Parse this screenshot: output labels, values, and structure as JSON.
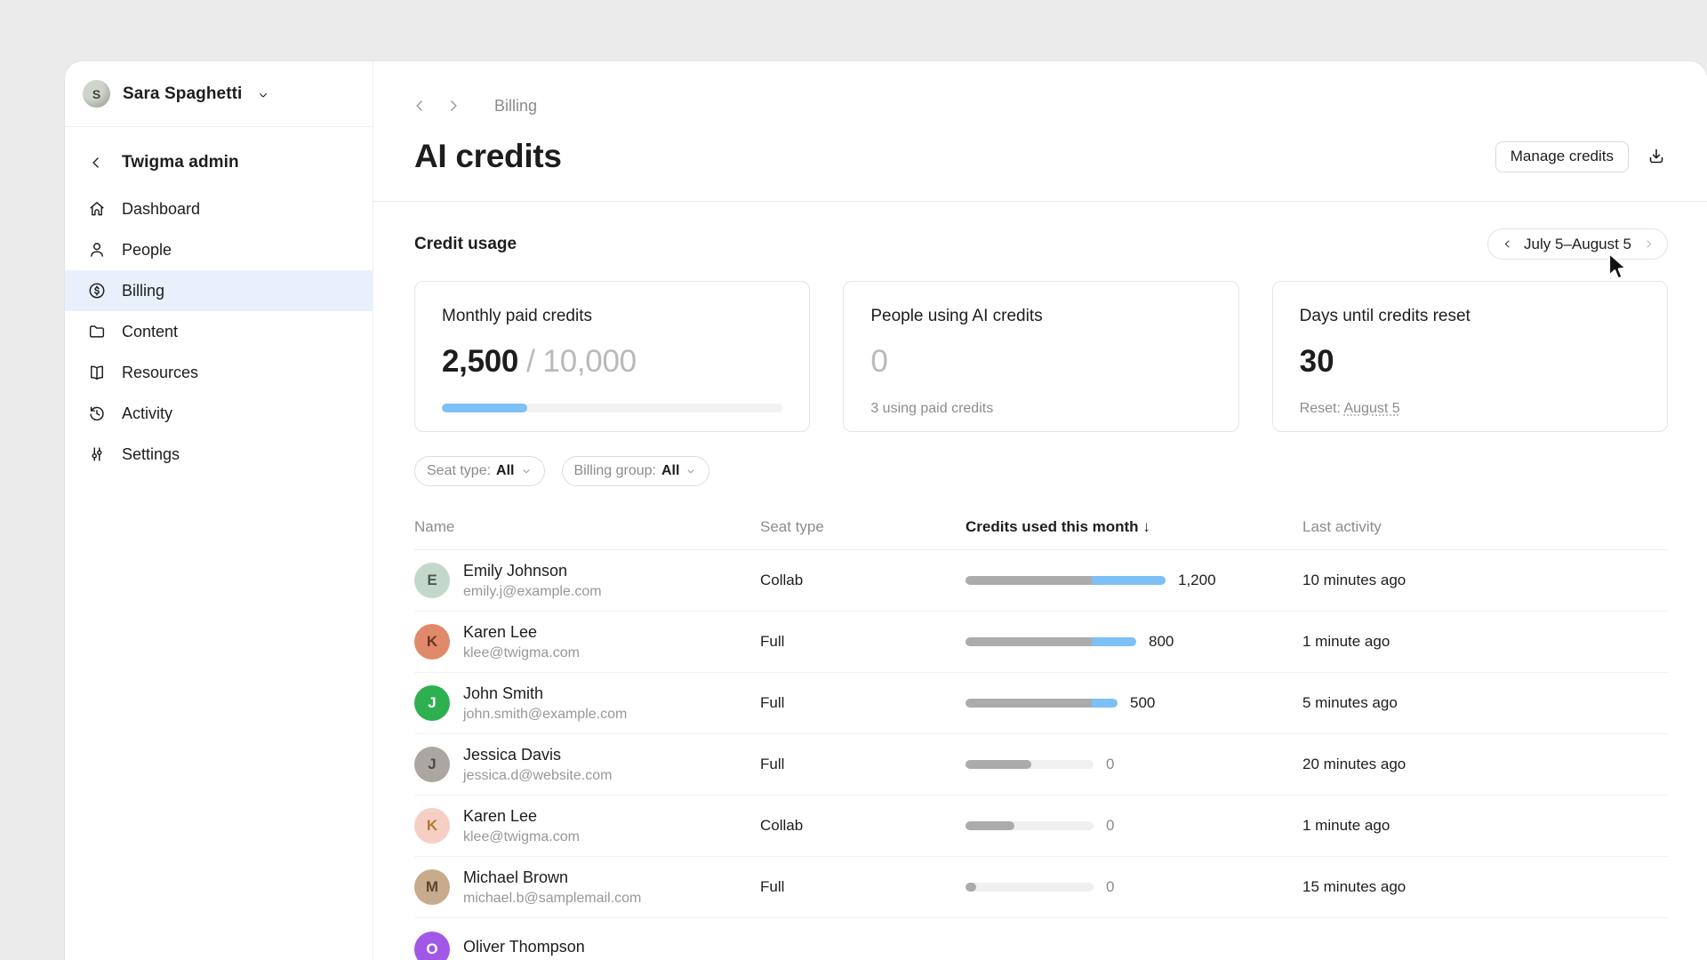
{
  "user_menu": {
    "name": "Sara Spaghetti",
    "avatar_initial": "S"
  },
  "sidebar": {
    "workspace_label": "Twigma admin",
    "items": [
      {
        "label": "Dashboard",
        "icon": "home-icon",
        "active": false
      },
      {
        "label": "People",
        "icon": "person-icon",
        "active": false
      },
      {
        "label": "Billing",
        "icon": "dollar-circle-icon",
        "active": true
      },
      {
        "label": "Content",
        "icon": "folder-icon",
        "active": false
      },
      {
        "label": "Resources",
        "icon": "book-icon",
        "active": false
      },
      {
        "label": "Activity",
        "icon": "history-icon",
        "active": false
      },
      {
        "label": "Settings",
        "icon": "sliders-icon",
        "active": false
      }
    ],
    "active_bg": "#e8f1fb"
  },
  "header": {
    "breadcrumb": "Billing",
    "title": "AI credits",
    "manage_button_label": "Manage credits",
    "download_icon": "download-icon"
  },
  "credit_usage": {
    "section_title": "Credit usage",
    "date_range_label": "July 5–August 5",
    "cards": {
      "monthly": {
        "title": "Monthly paid credits",
        "used": "2,500",
        "separator": "/",
        "total": "10,000",
        "progress_percent": 25,
        "bar_color": "#7cc0f5"
      },
      "people": {
        "title": "People using AI credits",
        "value": "0",
        "subtext": "3 using paid credits"
      },
      "reset": {
        "title": "Days until credits reset",
        "value": "30",
        "subtext_prefix": "Reset: ",
        "subtext_link": "August 5"
      }
    }
  },
  "filters": [
    {
      "label": "Seat type:",
      "value": "All"
    },
    {
      "label": "Billing group:",
      "value": "All"
    }
  ],
  "table": {
    "columns": {
      "name": "Name",
      "seat": "Seat type",
      "credits": "Credits used this month",
      "sort_arrow": "↓",
      "activity": "Last activity"
    },
    "bar_colors": {
      "track": "#f0f0f0",
      "included": "#ababab",
      "paid": "#7cc0f5"
    },
    "rows": [
      {
        "name": "Emily Johnson",
        "email": "emily.j@example.com",
        "seat": "Collab",
        "credits": "1,200",
        "activity": "10 minutes ago",
        "bar": {
          "gray": 142,
          "blue": 83
        },
        "avatar": {
          "label": "E",
          "bg": "#c3d8ca",
          "fg": "#4a5a50",
          "kind": "photo-avatar"
        }
      },
      {
        "name": "Karen Lee",
        "email": "klee@twigma.com",
        "seat": "Full",
        "credits": "800",
        "activity": "1 minute ago",
        "bar": {
          "gray": 142,
          "blue": 50
        },
        "avatar": {
          "label": "K",
          "bg": "#e08a6b",
          "fg": "#6b3420",
          "kind": "photo-avatar"
        }
      },
      {
        "name": "John Smith",
        "email": "john.smith@example.com",
        "seat": "Full",
        "credits": "500",
        "activity": "5 minutes ago",
        "bar": {
          "gray": 142,
          "blue": 29
        },
        "avatar": {
          "label": "J",
          "bg": "#2eb050",
          "fg": "#ffffff",
          "kind": "initial-avatar"
        }
      },
      {
        "name": "Jessica Davis",
        "email": "jessica.d@website.com",
        "seat": "Full",
        "credits": "0",
        "activity": "20 minutes ago",
        "bar": {
          "gray": 74,
          "blue": 0
        },
        "avatar": {
          "label": "J",
          "bg": "#aba69f",
          "fg": "#4d4a45",
          "kind": "photo-avatar"
        }
      },
      {
        "name": "Karen Lee",
        "email": "klee@twigma.com",
        "seat": "Collab",
        "credits": "0",
        "activity": "1 minute ago",
        "bar": {
          "gray": 55,
          "blue": 0
        },
        "avatar": {
          "label": "K",
          "bg": "#f6cfc4",
          "fg": "#b07a34",
          "kind": "illustration-avatar"
        }
      },
      {
        "name": "Michael Brown",
        "email": "michael.b@samplemail.com",
        "seat": "Full",
        "credits": "0",
        "activity": "15 minutes ago",
        "bar": {
          "gray": 12,
          "blue": 0
        },
        "avatar": {
          "label": "M",
          "bg": "#c8ab8d",
          "fg": "#5c4730",
          "kind": "photo-avatar"
        }
      },
      {
        "name": "Oliver Thompson",
        "email": "",
        "seat": "",
        "credits": null,
        "activity": "",
        "bar": null,
        "avatar": {
          "label": "O",
          "bg": "#a158e6",
          "fg": "#ffffff",
          "kind": "initial-avatar"
        }
      }
    ]
  }
}
